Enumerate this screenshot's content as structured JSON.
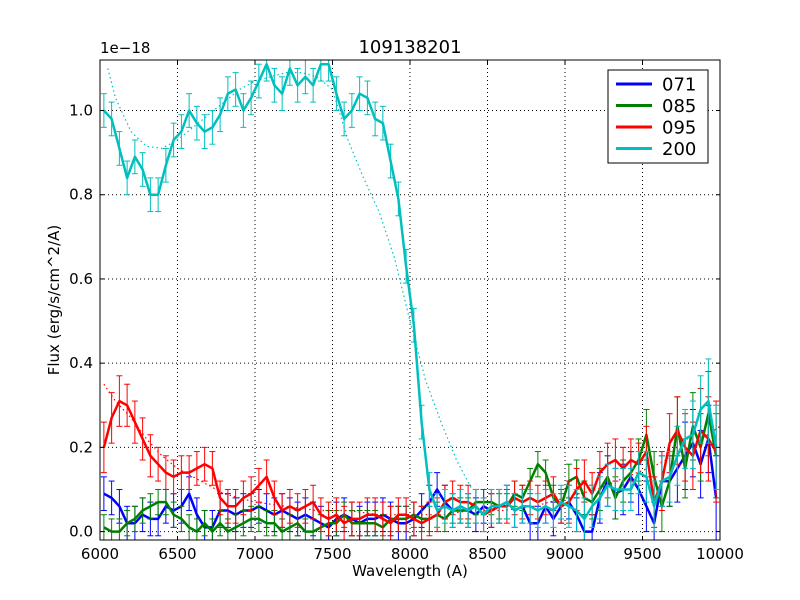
{
  "chart_data": {
    "type": "line",
    "title": "109138201",
    "xlabel": "Wavelength (A)",
    "ylabel": "Flux (erg/s/cm^2/A)",
    "offset_text": "1e−18",
    "xlim": [
      6000,
      10000
    ],
    "ylim": [
      -0.02,
      1.12
    ],
    "xticks": [
      6000,
      6500,
      7000,
      7500,
      8000,
      8500,
      9000,
      9500,
      10000
    ],
    "xtick_labels": [
      "6000",
      "6500",
      "7000",
      "7500",
      "8000",
      "8500",
      "9000",
      "9500",
      "10000"
    ],
    "yticks": [
      0.0,
      0.2,
      0.4,
      0.6,
      0.8,
      1.0
    ],
    "ytick_labels": [
      "0.0",
      "0.2",
      "0.4",
      "0.6",
      "0.8",
      "1.0"
    ],
    "grid": true,
    "legend_position": "top-right",
    "series": [
      {
        "name": "071",
        "color": "#0000ff",
        "x": [
          6025,
          6075,
          6125,
          6175,
          6225,
          6275,
          6325,
          6375,
          6425,
          6475,
          6525,
          6575,
          6625,
          6675,
          6725,
          6775,
          6825,
          6875,
          6925,
          6975,
          7025,
          7075,
          7125,
          7175,
          7225,
          7275,
          7325,
          7375,
          7425,
          7475,
          7525,
          7575,
          7625,
          7675,
          7725,
          7775,
          7825,
          7875,
          7925,
          7975,
          8025,
          8075,
          8125,
          8175,
          8225,
          8275,
          8325,
          8375,
          8425,
          8475,
          8525,
          8575,
          8625,
          8675,
          8725,
          8775,
          8825,
          8875,
          8925,
          8975,
          9025,
          9075,
          9125,
          9175,
          9225,
          9275,
          9325,
          9375,
          9425,
          9475,
          9525,
          9575,
          9625,
          9675,
          9725,
          9775,
          9825,
          9875,
          9925,
          9975
        ],
        "values": [
          0.09,
          0.08,
          0.06,
          0.02,
          0.02,
          0.04,
          0.03,
          0.03,
          0.06,
          0.05,
          0.06,
          0.09,
          0.04,
          0.01,
          0.01,
          0.05,
          0.05,
          0.04,
          0.05,
          0.05,
          0.06,
          0.05,
          0.04,
          0.05,
          0.04,
          0.03,
          0.04,
          0.03,
          0.02,
          0.01,
          0.03,
          0.04,
          0.03,
          0.02,
          0.03,
          0.03,
          0.04,
          0.03,
          0.02,
          0.02,
          0.03,
          0.05,
          0.07,
          0.1,
          0.07,
          0.05,
          0.06,
          0.05,
          0.04,
          0.06,
          0.05,
          0.06,
          0.07,
          0.05,
          0.06,
          0.02,
          0.02,
          0.06,
          0.03,
          0.06,
          0.07,
          0.04,
          0.0,
          0.0,
          0.08,
          0.12,
          0.09,
          0.1,
          0.13,
          0.1,
          0.06,
          0.02,
          0.12,
          0.12,
          0.15,
          0.18,
          0.21,
          0.16,
          0.22,
          0.08
        ],
        "errors": [
          0.04,
          0.04,
          0.04,
          0.04,
          0.04,
          0.04,
          0.04,
          0.04,
          0.04,
          0.04,
          0.04,
          0.04,
          0.04,
          0.04,
          0.04,
          0.04,
          0.04,
          0.04,
          0.04,
          0.04,
          0.04,
          0.04,
          0.04,
          0.04,
          0.04,
          0.04,
          0.04,
          0.04,
          0.04,
          0.04,
          0.04,
          0.04,
          0.04,
          0.04,
          0.04,
          0.04,
          0.04,
          0.04,
          0.04,
          0.04,
          0.04,
          0.04,
          0.04,
          0.04,
          0.04,
          0.04,
          0.04,
          0.04,
          0.04,
          0.04,
          0.04,
          0.04,
          0.04,
          0.04,
          0.04,
          0.04,
          0.04,
          0.04,
          0.04,
          0.04,
          0.04,
          0.04,
          0.04,
          0.04,
          0.06,
          0.06,
          0.06,
          0.06,
          0.06,
          0.06,
          0.06,
          0.06,
          0.06,
          0.06,
          0.08,
          0.08,
          0.08,
          0.08,
          0.08,
          0.1
        ]
      },
      {
        "name": "085",
        "color": "#008000",
        "x": [
          6025,
          6075,
          6125,
          6175,
          6225,
          6275,
          6325,
          6375,
          6425,
          6475,
          6525,
          6575,
          6625,
          6675,
          6725,
          6775,
          6825,
          6875,
          6925,
          6975,
          7025,
          7075,
          7125,
          7175,
          7225,
          7275,
          7325,
          7375,
          7425,
          7475,
          7525,
          7575,
          7625,
          7675,
          7725,
          7775,
          7825,
          7875,
          7925,
          7975,
          8025,
          8075,
          8125,
          8175,
          8225,
          8275,
          8325,
          8375,
          8425,
          8475,
          8525,
          8575,
          8625,
          8675,
          8725,
          8775,
          8825,
          8875,
          8925,
          8975,
          9025,
          9075,
          9125,
          9175,
          9225,
          9275,
          9325,
          9375,
          9425,
          9475,
          9525,
          9575,
          9625,
          9675,
          9725,
          9775,
          9825,
          9875,
          9925,
          9975
        ],
        "values": [
          0.01,
          0.0,
          0.0,
          0.02,
          0.03,
          0.05,
          0.06,
          0.07,
          0.07,
          0.04,
          0.03,
          0.01,
          0.0,
          0.02,
          0.0,
          0.02,
          0.0,
          0.01,
          0.02,
          0.03,
          0.03,
          0.02,
          0.02,
          0.0,
          0.01,
          0.02,
          0.0,
          0.0,
          0.01,
          0.02,
          0.02,
          0.04,
          0.02,
          0.02,
          0.02,
          0.02,
          0.01,
          0.03,
          0.03,
          0.03,
          0.04,
          0.03,
          0.03,
          0.04,
          0.03,
          0.05,
          0.05,
          0.05,
          0.07,
          0.07,
          0.07,
          0.06,
          0.06,
          0.09,
          0.08,
          0.12,
          0.16,
          0.14,
          0.08,
          0.06,
          0.12,
          0.13,
          0.08,
          0.07,
          0.1,
          0.13,
          0.08,
          0.12,
          0.14,
          0.17,
          0.23,
          0.13,
          0.06,
          0.12,
          0.25,
          0.15,
          0.25,
          0.2,
          0.28,
          0.18
        ],
        "errors": [
          0.03,
          0.03,
          0.03,
          0.03,
          0.03,
          0.03,
          0.03,
          0.03,
          0.03,
          0.03,
          0.03,
          0.03,
          0.03,
          0.03,
          0.03,
          0.03,
          0.03,
          0.03,
          0.03,
          0.03,
          0.03,
          0.03,
          0.03,
          0.03,
          0.03,
          0.03,
          0.03,
          0.03,
          0.03,
          0.03,
          0.03,
          0.03,
          0.03,
          0.03,
          0.03,
          0.03,
          0.03,
          0.03,
          0.03,
          0.03,
          0.03,
          0.03,
          0.03,
          0.03,
          0.03,
          0.03,
          0.03,
          0.03,
          0.03,
          0.03,
          0.03,
          0.03,
          0.03,
          0.03,
          0.03,
          0.03,
          0.03,
          0.03,
          0.03,
          0.03,
          0.04,
          0.04,
          0.04,
          0.04,
          0.05,
          0.05,
          0.05,
          0.05,
          0.05,
          0.05,
          0.06,
          0.06,
          0.06,
          0.06,
          0.07,
          0.07,
          0.08,
          0.08,
          0.1,
          0.1
        ]
      },
      {
        "name": "095",
        "color": "#ff0000",
        "x": [
          6025,
          6075,
          6125,
          6175,
          6225,
          6275,
          6325,
          6375,
          6425,
          6475,
          6525,
          6575,
          6625,
          6675,
          6725,
          6775,
          6825,
          6875,
          6925,
          6975,
          7025,
          7075,
          7125,
          7175,
          7225,
          7275,
          7325,
          7375,
          7425,
          7475,
          7525,
          7575,
          7625,
          7675,
          7725,
          7775,
          7825,
          7875,
          7925,
          7975,
          8025,
          8075,
          8125,
          8175,
          8225,
          8275,
          8325,
          8375,
          8425,
          8475,
          8525,
          8575,
          8625,
          8675,
          8725,
          8775,
          8825,
          8875,
          8925,
          8975,
          9025,
          9075,
          9125,
          9175,
          9225,
          9275,
          9325,
          9375,
          9425,
          9475,
          9525,
          9575,
          9625,
          9675,
          9725,
          9775,
          9825,
          9875,
          9925,
          9975
        ],
        "values": [
          0.2,
          0.27,
          0.31,
          0.3,
          0.26,
          0.22,
          0.18,
          0.16,
          0.14,
          0.13,
          0.14,
          0.14,
          0.15,
          0.16,
          0.15,
          0.08,
          0.06,
          0.06,
          0.08,
          0.09,
          0.11,
          0.13,
          0.08,
          0.05,
          0.06,
          0.05,
          0.06,
          0.07,
          0.04,
          0.03,
          0.04,
          0.02,
          0.03,
          0.03,
          0.04,
          0.04,
          0.03,
          0.02,
          0.04,
          0.04,
          0.03,
          0.02,
          0.03,
          0.04,
          0.07,
          0.08,
          0.07,
          0.07,
          0.06,
          0.04,
          0.05,
          0.06,
          0.06,
          0.08,
          0.07,
          0.08,
          0.07,
          0.08,
          0.09,
          0.06,
          0.07,
          0.1,
          0.12,
          0.09,
          0.14,
          0.16,
          0.17,
          0.15,
          0.17,
          0.16,
          0.19,
          0.07,
          0.12,
          0.21,
          0.24,
          0.2,
          0.18,
          0.24,
          0.22,
          0.19
        ],
        "errors": [
          0.06,
          0.06,
          0.06,
          0.05,
          0.05,
          0.05,
          0.05,
          0.04,
          0.04,
          0.04,
          0.04,
          0.04,
          0.04,
          0.04,
          0.04,
          0.04,
          0.04,
          0.04,
          0.04,
          0.04,
          0.04,
          0.04,
          0.04,
          0.04,
          0.04,
          0.04,
          0.04,
          0.04,
          0.04,
          0.04,
          0.04,
          0.04,
          0.04,
          0.04,
          0.04,
          0.04,
          0.04,
          0.04,
          0.04,
          0.04,
          0.04,
          0.04,
          0.04,
          0.04,
          0.04,
          0.04,
          0.04,
          0.04,
          0.04,
          0.04,
          0.04,
          0.04,
          0.04,
          0.04,
          0.04,
          0.04,
          0.04,
          0.04,
          0.04,
          0.04,
          0.05,
          0.05,
          0.05,
          0.05,
          0.05,
          0.05,
          0.05,
          0.05,
          0.05,
          0.05,
          0.06,
          0.06,
          0.07,
          0.07,
          0.08,
          0.08,
          0.08,
          0.1,
          0.1,
          0.12
        ]
      },
      {
        "name": "200",
        "color": "#00bfbf",
        "x": [
          6025,
          6075,
          6125,
          6175,
          6225,
          6275,
          6325,
          6375,
          6425,
          6475,
          6525,
          6575,
          6625,
          6675,
          6725,
          6775,
          6825,
          6875,
          6925,
          6975,
          7025,
          7075,
          7125,
          7175,
          7225,
          7275,
          7325,
          7375,
          7425,
          7475,
          7525,
          7575,
          7625,
          7675,
          7725,
          7775,
          7825,
          7875,
          7925,
          7975,
          8025,
          8075,
          8125,
          8175,
          8225,
          8275,
          8325,
          8375,
          8425,
          8475,
          8525,
          8575,
          8625,
          8675,
          8725,
          8775,
          8825,
          8875,
          8925,
          8975,
          9025,
          9075,
          9125,
          9175,
          9225,
          9275,
          9325,
          9375,
          9425,
          9475,
          9525,
          9575,
          9625,
          9675,
          9725,
          9775,
          9825,
          9875,
          9925,
          9975
        ],
        "values": [
          1.0,
          0.98,
          0.91,
          0.84,
          0.89,
          0.86,
          0.8,
          0.8,
          0.87,
          0.93,
          0.95,
          1.0,
          0.97,
          0.95,
          0.96,
          0.99,
          1.04,
          1.05,
          1.0,
          1.03,
          1.07,
          1.11,
          1.06,
          1.04,
          1.1,
          1.06,
          1.08,
          1.06,
          1.11,
          1.11,
          1.04,
          0.98,
          1.0,
          1.04,
          1.03,
          0.98,
          0.97,
          0.88,
          0.79,
          0.63,
          0.49,
          0.26,
          0.1,
          0.05,
          0.06,
          0.05,
          0.06,
          0.05,
          0.06,
          0.04,
          0.06,
          0.06,
          0.07,
          0.05,
          0.06,
          0.06,
          0.05,
          0.06,
          0.05,
          0.07,
          0.06,
          0.05,
          0.03,
          0.06,
          0.08,
          0.11,
          0.1,
          0.1,
          0.1,
          0.14,
          0.13,
          0.06,
          0.12,
          0.13,
          0.18,
          0.22,
          0.23,
          0.29,
          0.31,
          0.2
        ],
        "errors": [
          0.04,
          0.04,
          0.04,
          0.04,
          0.04,
          0.04,
          0.04,
          0.04,
          0.04,
          0.04,
          0.04,
          0.04,
          0.04,
          0.04,
          0.04,
          0.04,
          0.04,
          0.04,
          0.04,
          0.04,
          0.04,
          0.04,
          0.04,
          0.04,
          0.04,
          0.04,
          0.04,
          0.04,
          0.04,
          0.04,
          0.04,
          0.04,
          0.04,
          0.04,
          0.04,
          0.04,
          0.04,
          0.04,
          0.04,
          0.04,
          0.04,
          0.04,
          0.04,
          0.04,
          0.04,
          0.04,
          0.04,
          0.04,
          0.04,
          0.04,
          0.04,
          0.04,
          0.04,
          0.04,
          0.04,
          0.04,
          0.04,
          0.04,
          0.04,
          0.04,
          0.05,
          0.05,
          0.05,
          0.05,
          0.05,
          0.05,
          0.05,
          0.05,
          0.05,
          0.05,
          0.06,
          0.06,
          0.06,
          0.06,
          0.07,
          0.07,
          0.08,
          0.08,
          0.1,
          0.1
        ]
      }
    ],
    "model_curves": [
      {
        "name": "095-model",
        "color": "#ff0000",
        "style": "dotted",
        "x": [
          6025,
          6100,
          6200,
          6300,
          6400,
          6500,
          6600,
          6700,
          6800,
          6900,
          7000,
          7200,
          7400,
          7600,
          7800,
          8000,
          8200,
          8400,
          8600,
          8800,
          9000,
          9200,
          9400,
          9600,
          9800,
          10000
        ],
        "values": [
          0.35,
          0.31,
          0.27,
          0.22,
          0.18,
          0.15,
          0.13,
          0.11,
          0.09,
          0.08,
          0.07,
          0.06,
          0.05,
          0.05,
          0.04,
          0.04,
          0.04,
          0.05,
          0.05,
          0.06,
          0.08,
          0.1,
          0.13,
          0.16,
          0.2,
          0.25
        ]
      },
      {
        "name": "200-model",
        "color": "#00bfbf",
        "style": "dotted",
        "x": [
          6050,
          6100,
          6200,
          6300,
          6400,
          6500,
          6600,
          6700,
          6800,
          6900,
          7000,
          7100,
          7200,
          7300,
          7400,
          7500,
          7600,
          7700,
          7800,
          7900,
          8000,
          8100,
          8200,
          8300,
          8400
        ],
        "values": [
          1.1,
          1.03,
          0.95,
          0.915,
          0.91,
          0.93,
          0.96,
          0.99,
          1.02,
          1.05,
          1.07,
          1.08,
          1.09,
          1.09,
          1.08,
          1.05,
          0.93,
          0.84,
          0.76,
          0.65,
          0.5,
          0.36,
          0.26,
          0.17,
          0.1
        ]
      }
    ]
  }
}
